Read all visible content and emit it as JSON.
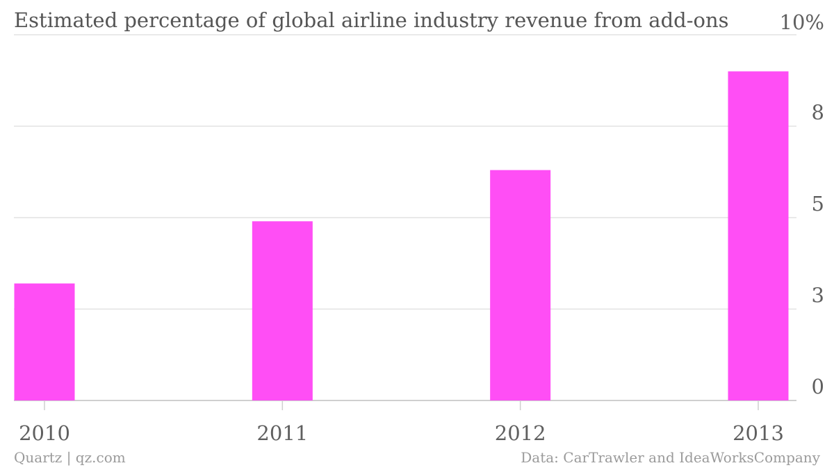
{
  "chart_data": {
    "type": "bar",
    "title": "Estimated percentage of global airline industry revenue from add-ons",
    "categories": [
      "2010",
      "2011",
      "2012",
      "2013"
    ],
    "values": [
      3.2,
      4.9,
      6.3,
      9.0
    ],
    "yticks": [
      0,
      2.5,
      5,
      7.5,
      10
    ],
    "ytick_labels": [
      "0",
      "3",
      "5",
      "8",
      "10%"
    ],
    "ylim": [
      0,
      10
    ],
    "xlabel": "",
    "ylabel": "",
    "grid": true,
    "bar_color": "#ff4ef5",
    "source": "Data: CarTrawler and IdeaWorksCompany",
    "credit": "Quartz | qz.com"
  }
}
